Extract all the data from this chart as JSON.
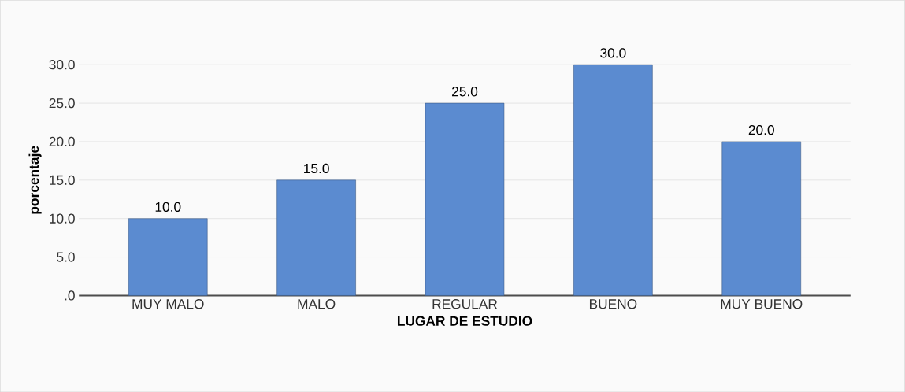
{
  "chart_data": {
    "type": "bar",
    "xlabel": "LUGAR DE ESTUDIO",
    "ylabel": "porcentaje",
    "categories": [
      "MUY MALO",
      "MALO",
      "REGULAR",
      "BUENO",
      "MUY BUENO"
    ],
    "values": [
      10,
      15,
      25,
      30,
      20
    ],
    "value_labels": [
      "10.0",
      "15.0",
      "25.0",
      "30.0",
      "20.0"
    ],
    "color": "#5b8bd0",
    "ylim": [
      0,
      30
    ],
    "yticks": [
      {
        "value": 0,
        "label": ".0"
      },
      {
        "value": 5,
        "label": "5.0"
      },
      {
        "value": 10,
        "label": "10.0"
      },
      {
        "value": 15,
        "label": "15.0"
      },
      {
        "value": 20,
        "label": "20.0"
      },
      {
        "value": 25,
        "label": "25.0"
      },
      {
        "value": 30,
        "label": "30.0"
      }
    ],
    "grid": "y"
  }
}
